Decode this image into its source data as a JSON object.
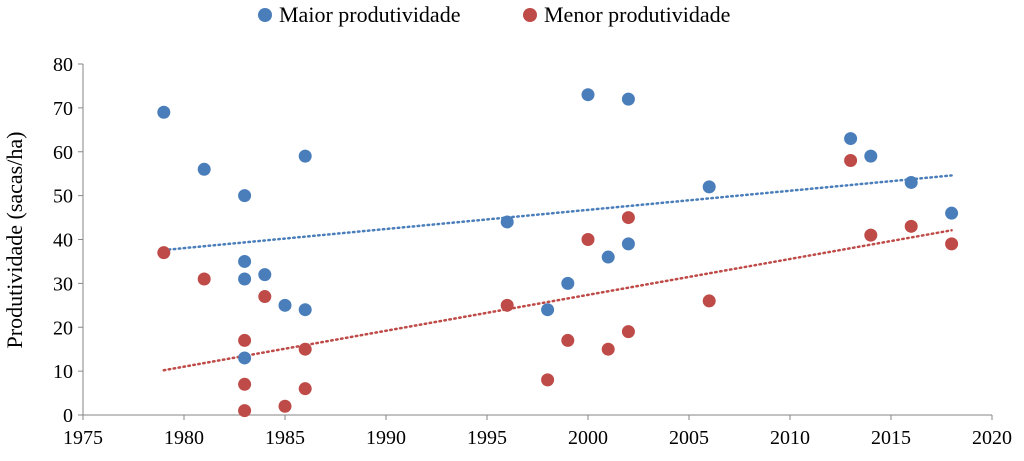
{
  "chart_data": {
    "type": "scatter",
    "ylabel": "Produtividade (sacas/ha)",
    "xlabel": "",
    "xlim": [
      1975,
      2020
    ],
    "ylim": [
      0,
      80
    ],
    "x_ticks": [
      "1975",
      "1980",
      "1985",
      "1990",
      "1995",
      "2000",
      "2005",
      "2010",
      "2015",
      "2020"
    ],
    "y_ticks": [
      "0",
      "10",
      "20",
      "30",
      "40",
      "50",
      "60",
      "70",
      "80"
    ],
    "grid": false,
    "legend_position": "top",
    "series": [
      {
        "name": "Maior produtividade",
        "color": "#4a7ebb",
        "points": [
          [
            1979,
            69
          ],
          [
            1981,
            56
          ],
          [
            1983,
            50
          ],
          [
            1983,
            35
          ],
          [
            1983,
            31
          ],
          [
            1983,
            13
          ],
          [
            1984,
            32
          ],
          [
            1985,
            25
          ],
          [
            1986,
            59
          ],
          [
            1986,
            24
          ],
          [
            1996,
            44
          ],
          [
            1998,
            24
          ],
          [
            1999,
            30
          ],
          [
            2000,
            73
          ],
          [
            2001,
            36
          ],
          [
            2002,
            72
          ],
          [
            2002,
            39
          ],
          [
            2006,
            52
          ],
          [
            2013,
            63
          ],
          [
            2014,
            59
          ],
          [
            2016,
            53
          ],
          [
            2018,
            46
          ]
        ],
        "trendline": {
          "x": [
            1979,
            2018
          ],
          "y": [
            37.6,
            54.6
          ]
        }
      },
      {
        "name": "Menor produtividade",
        "color": "#be4b48",
        "points": [
          [
            1979,
            37
          ],
          [
            1981,
            31
          ],
          [
            1983,
            17
          ],
          [
            1983,
            7
          ],
          [
            1983,
            1
          ],
          [
            1984,
            27
          ],
          [
            1985,
            2
          ],
          [
            1986,
            15
          ],
          [
            1986,
            6
          ],
          [
            1996,
            25
          ],
          [
            1998,
            8
          ],
          [
            1999,
            17
          ],
          [
            2000,
            40
          ],
          [
            2001,
            15
          ],
          [
            2002,
            45
          ],
          [
            2002,
            19
          ],
          [
            2006,
            26
          ],
          [
            2013,
            58
          ],
          [
            2014,
            41
          ],
          [
            2016,
            43
          ],
          [
            2018,
            39
          ]
        ],
        "trendline": {
          "x": [
            1979,
            2018
          ],
          "y": [
            10.2,
            42.1
          ]
        }
      }
    ]
  }
}
